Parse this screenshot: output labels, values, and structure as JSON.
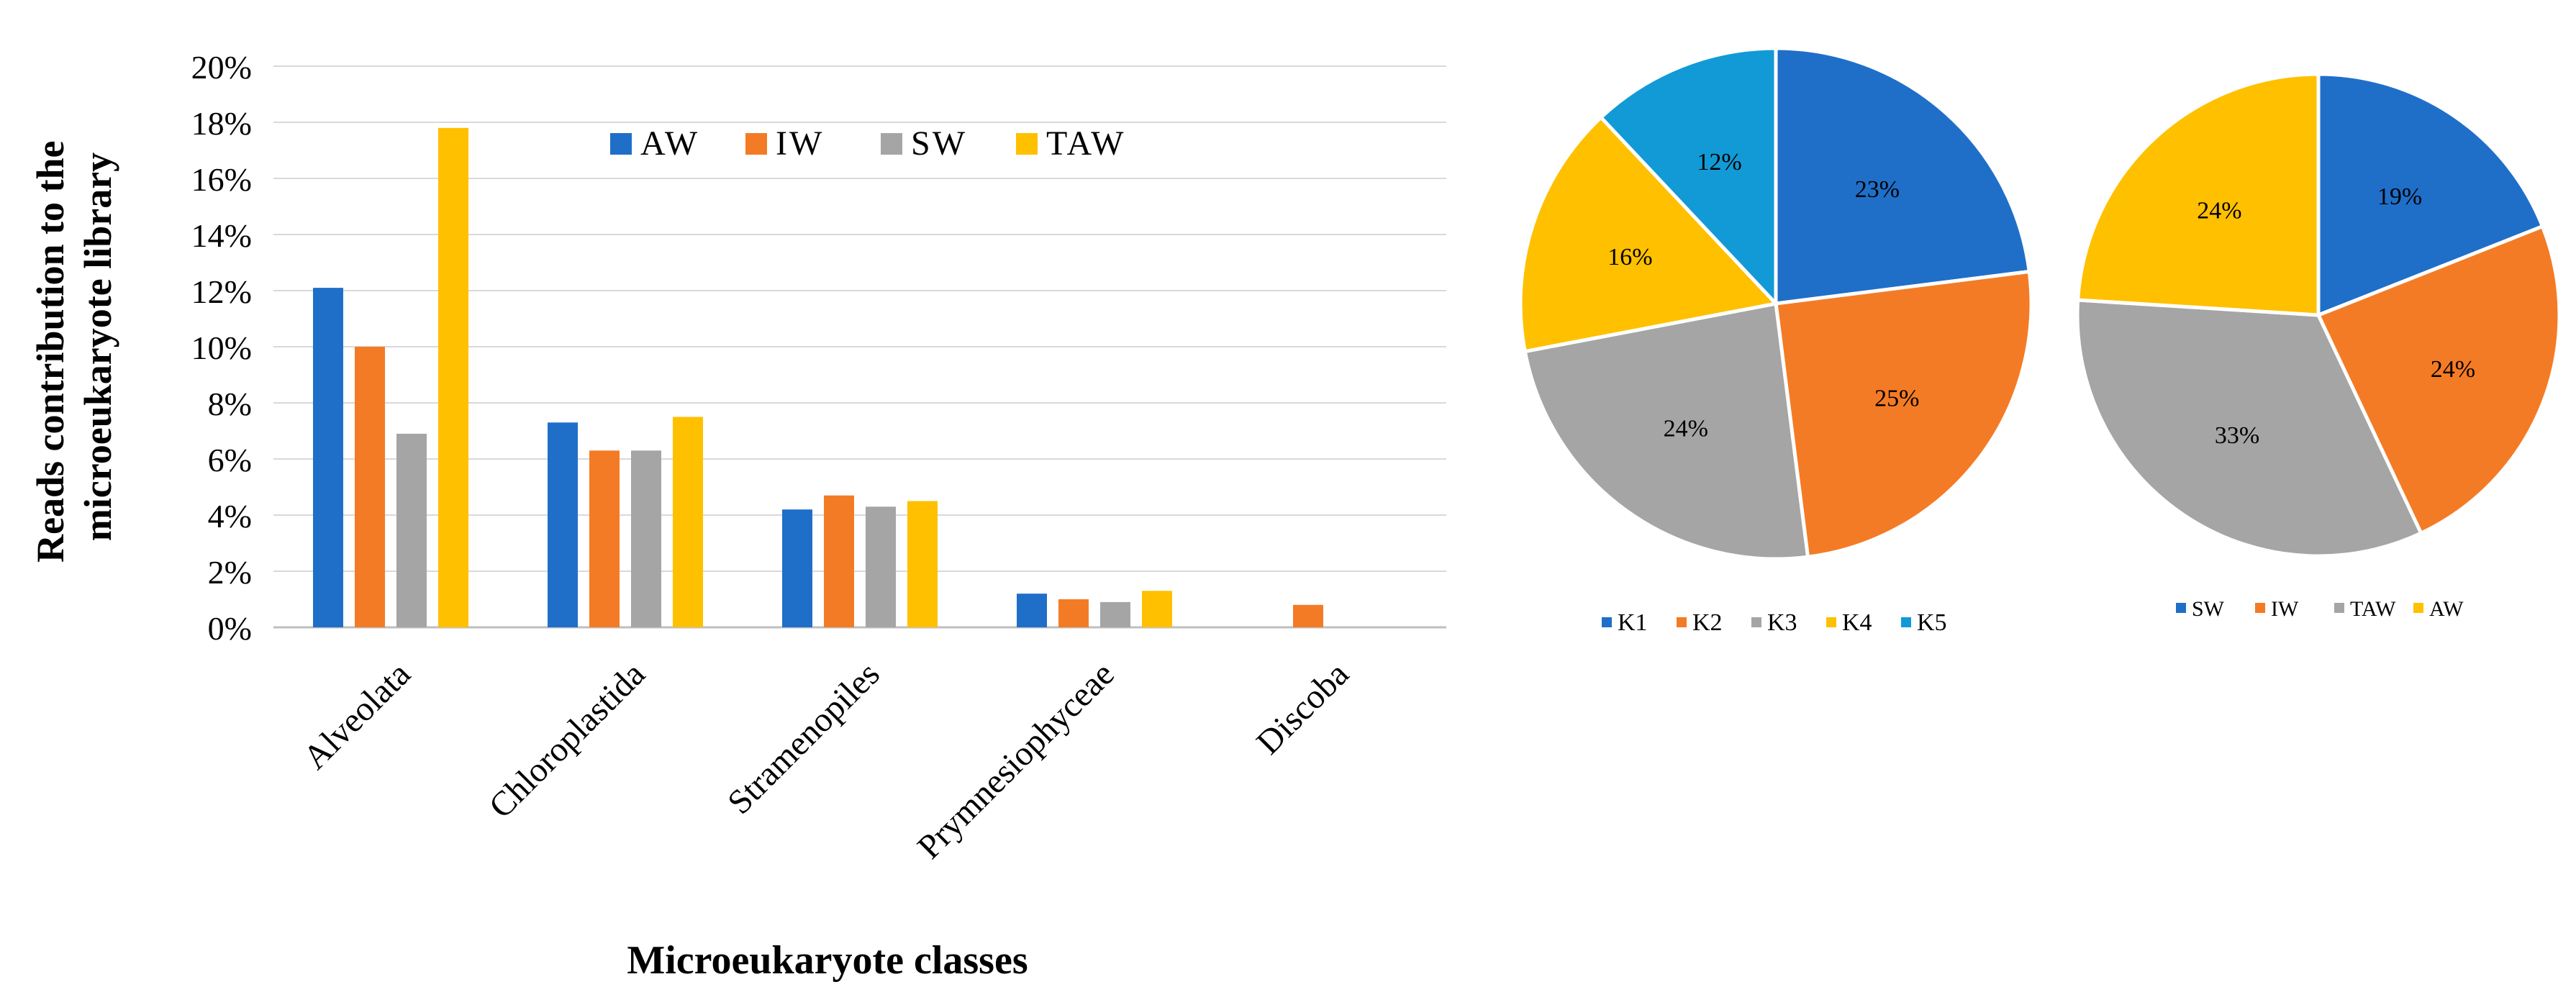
{
  "colors": {
    "AW": "#1f6fc9",
    "IW": "#f47b25",
    "SW": "#a5a5a5",
    "TAW": "#ffc000",
    "K5": "#129ad6",
    "grid": "#d9d9d9",
    "axis": "#bfbfbf",
    "text": "#000000"
  },
  "chart_data": [
    {
      "type": "bar",
      "title": "",
      "xlabel": "Microeukaryote classes",
      "ylabel_lines": [
        "Reads contribution to the",
        "microeukaryote library"
      ],
      "ylim": [
        0,
        20
      ],
      "yticks": [
        "0%",
        "2%",
        "4%",
        "6%",
        "8%",
        "10%",
        "12%",
        "14%",
        "16%",
        "18%",
        "20%"
      ],
      "grid": true,
      "legend_position": "top-center",
      "categories": [
        "Alveolata",
        "Chloroplastida",
        "Stramenopiles",
        "Prymnesiophyceae",
        "Discoba"
      ],
      "series": [
        {
          "name": "AW",
          "values": [
            12.1,
            7.3,
            4.2,
            1.2,
            0.0
          ]
        },
        {
          "name": "IW",
          "values": [
            10.0,
            6.3,
            4.7,
            1.0,
            0.8
          ]
        },
        {
          "name": "SW",
          "values": [
            6.9,
            6.3,
            4.3,
            0.9,
            0.0
          ]
        },
        {
          "name": "TAW",
          "values": [
            17.8,
            7.5,
            4.5,
            1.3,
            0.0
          ]
        }
      ]
    },
    {
      "type": "pie",
      "title": "",
      "legend_position": "bottom",
      "labels": [
        "K1",
        "K2",
        "K3",
        "K4",
        "K5"
      ],
      "values": [
        23,
        25,
        24,
        16,
        12
      ],
      "value_labels": [
        "23%",
        "25%",
        "24%",
        "16%",
        "12%"
      ],
      "color_keys": [
        "AW",
        "IW",
        "SW",
        "TAW",
        "K5"
      ]
    },
    {
      "type": "pie",
      "title": "",
      "legend_position": "bottom",
      "labels": [
        "SW",
        "IW",
        "TAW",
        "AW"
      ],
      "values": [
        19,
        24,
        33,
        24
      ],
      "value_labels": [
        "19%",
        "24%",
        "33%",
        "24%"
      ],
      "color_keys": [
        "AW",
        "IW",
        "SW",
        "TAW"
      ]
    }
  ]
}
